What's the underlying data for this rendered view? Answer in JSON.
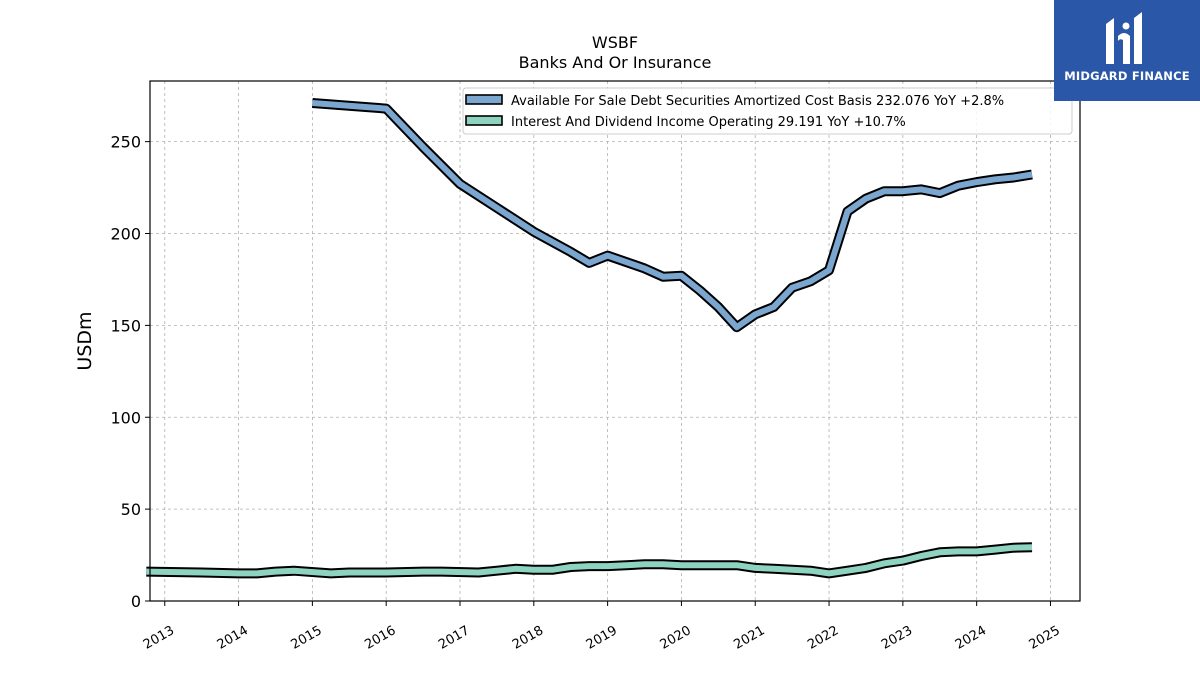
{
  "brand": {
    "name": "MIDGARD FINANCE",
    "color": "#2b57a8"
  },
  "chart_data": {
    "type": "line",
    "title": "WSBF",
    "subtitle": "Banks And Or Insurance",
    "ylabel": "USDm",
    "xlabel": "",
    "ylim": [
      0,
      283
    ],
    "xlim": [
      2012.8,
      2025.4
    ],
    "y_ticks": [
      0,
      50,
      100,
      150,
      200,
      250
    ],
    "x_ticks": [
      "2013",
      "2014",
      "2015",
      "2016",
      "2017",
      "2018",
      "2019",
      "2020",
      "2021",
      "2022",
      "2023",
      "2024",
      "2025"
    ],
    "grid": true,
    "legend_position": "top-right",
    "series": [
      {
        "name": "Available For Sale Debt Securities Amortized Cost Basis",
        "legend_label": "Available For Sale Debt Securities Amortized Cost Basis  232.076 YoY +2.8%",
        "color": "#7aa6d0",
        "x": [
          "2015-01",
          "2016-01",
          "2016-07",
          "2017-01",
          "2017-07",
          "2018-01",
          "2018-07",
          "2018-10",
          "2019-01",
          "2019-07",
          "2019-10",
          "2020-01",
          "2020-04",
          "2020-07",
          "2020-10",
          "2021-01",
          "2021-04",
          "2021-07",
          "2021-10",
          "2022-01",
          "2022-04",
          "2022-07",
          "2022-10",
          "2023-01",
          "2023-04",
          "2023-07",
          "2023-10",
          "2024-01",
          "2024-04",
          "2024-07",
          "2024-10"
        ],
        "values": [
          271,
          268,
          247,
          227,
          214,
          201,
          190,
          184,
          188,
          181,
          176.5,
          177,
          169,
          160,
          149,
          156,
          160,
          170.5,
          174,
          180,
          212,
          219,
          223,
          223,
          224,
          222,
          226,
          228,
          229.5,
          230.5,
          232.1
        ]
      },
      {
        "name": "Interest And Dividend Income Operating",
        "legend_label": "Interest And Dividend Income Operating  29.191 YoY +10.7%",
        "color": "#8dd3c0",
        "x": [
          "2012-10",
          "2013-07",
          "2014-01",
          "2014-04",
          "2014-07",
          "2014-10",
          "2015-04",
          "2015-07",
          "2016-01",
          "2016-07",
          "2016-10",
          "2017-04",
          "2017-07",
          "2017-10",
          "2018-01",
          "2018-04",
          "2018-07",
          "2018-10",
          "2019-01",
          "2019-04",
          "2019-07",
          "2019-10",
          "2020-01",
          "2020-04",
          "2020-07",
          "2020-10",
          "2021-01",
          "2021-04",
          "2021-07",
          "2021-10",
          "2022-01",
          "2022-04",
          "2022-07",
          "2022-10",
          "2023-01",
          "2023-04",
          "2023-07",
          "2023-10",
          "2024-01",
          "2024-04",
          "2024-07",
          "2024-10"
        ],
        "values": [
          16,
          15.5,
          15,
          15,
          16,
          16.5,
          15,
          15.5,
          15.5,
          16,
          16,
          15.5,
          16.5,
          17.5,
          17,
          17,
          18.5,
          19,
          19,
          19.5,
          20,
          20,
          19.5,
          19.5,
          19.5,
          19.5,
          18,
          17.5,
          17,
          16.5,
          15,
          16.5,
          18,
          20.5,
          22,
          24.5,
          26.5,
          27,
          27,
          28,
          29,
          29.2
        ]
      }
    ]
  }
}
